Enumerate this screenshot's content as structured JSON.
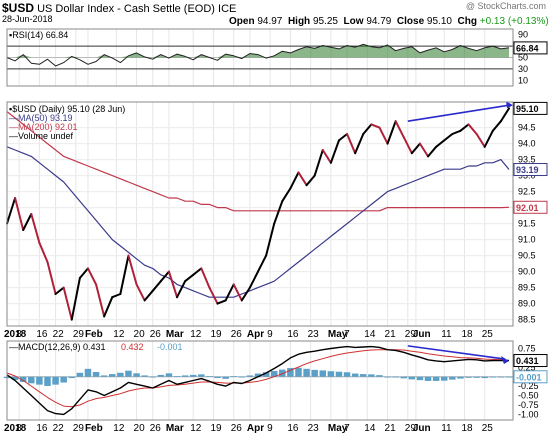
{
  "header": {
    "symbol": "$USD",
    "name": "US Dollar Index - Cash Settle (EOD)",
    "exchange": "ICE",
    "date": "28-Jun-2018",
    "watermark": "@ StockCharts.com",
    "open_label": "Open",
    "open": "94.97",
    "high_label": "High",
    "high": "95.25",
    "low_label": "Low",
    "low": "94.79",
    "close_label": "Close",
    "close": "95.10",
    "chg_label": "Chg",
    "chg": "+0.13 (+0.13%)"
  },
  "colors": {
    "price": "#000000",
    "price_down": "#b0203a",
    "ma50": "#3a3a8c",
    "ma200": "#c0394b",
    "rsi_fill": "#2a7a2a",
    "hist": "#5aa0c8",
    "signal": "#d03030",
    "trend": "#2a2acc"
  },
  "chart_data": [
    {
      "panel": "rsi",
      "type": "line",
      "legend": "RSI(14) 66.84",
      "ylim": [
        0,
        100
      ],
      "yticks": [
        10,
        30,
        50,
        70,
        90
      ],
      "last_label": "66.84",
      "x": [
        0,
        2,
        4,
        6,
        8,
        10,
        12,
        14,
        16,
        18,
        20,
        22,
        24,
        26,
        28,
        30,
        32,
        34,
        36,
        38,
        40,
        42,
        44,
        46,
        48,
        50,
        52,
        54,
        56,
        58,
        60,
        62,
        64,
        66,
        68,
        70,
        72,
        74,
        76,
        78,
        80,
        82,
        84,
        86,
        88,
        90,
        92,
        94,
        96,
        98,
        100,
        102,
        104,
        106,
        108,
        110,
        112,
        114,
        116,
        118,
        120,
        122,
        124
      ],
      "values": [
        50,
        44,
        55,
        40,
        38,
        47,
        35,
        41,
        52,
        46,
        38,
        43,
        55,
        49,
        41,
        53,
        58,
        51,
        47,
        55,
        49,
        56,
        52,
        46,
        55,
        50,
        45,
        56,
        53,
        48,
        57,
        55,
        49,
        53,
        61,
        58,
        64,
        69,
        66,
        71,
        68,
        65,
        71,
        68,
        73,
        69,
        67,
        72,
        62,
        66,
        69,
        58,
        63,
        67,
        60,
        64,
        71,
        66,
        62,
        67,
        70,
        65,
        67
      ]
    },
    {
      "panel": "price",
      "type": "line",
      "legend": [
        {
          "name": "$USD (Daily) 95.10 (28 Jun)",
          "color": "price"
        },
        {
          "name": "MA(50) 93.19",
          "color": "ma50"
        },
        {
          "name": "MA(200) 92.01",
          "color": "ma200"
        },
        {
          "name": "Volume undef",
          "color": "price"
        }
      ],
      "ylim": [
        88.3,
        95.3
      ],
      "yticks": [
        "88.5",
        "89.0",
        "89.5",
        "90.0",
        "90.5",
        "91.0",
        "91.5",
        "92.0",
        "92.5",
        "93.0",
        "93.5",
        "94.0",
        "94.5"
      ],
      "last_labels": [
        "95.10",
        "93.19",
        "92.01"
      ],
      "x": [
        0,
        2,
        4,
        6,
        8,
        10,
        12,
        14,
        16,
        18,
        20,
        22,
        24,
        26,
        28,
        30,
        32,
        34,
        36,
        38,
        40,
        42,
        44,
        46,
        48,
        50,
        52,
        54,
        56,
        58,
        60,
        62,
        64,
        66,
        68,
        70,
        72,
        74,
        76,
        78,
        80,
        82,
        84,
        86,
        88,
        90,
        92,
        94,
        96,
        98,
        100,
        102,
        104,
        106,
        108,
        110,
        112,
        114,
        116,
        118,
        120,
        122,
        124
      ],
      "close": [
        91.5,
        92.3,
        91.3,
        91.8,
        90.9,
        90.3,
        89.3,
        89.5,
        88.5,
        89.8,
        90.1,
        89.6,
        88.6,
        89.2,
        89.3,
        90.5,
        89.6,
        89.1,
        89.4,
        89.7,
        90.0,
        89.2,
        89.7,
        89.9,
        90.1,
        89.5,
        89.0,
        89.1,
        89.6,
        89.1,
        89.5,
        90.0,
        90.5,
        91.5,
        92.2,
        92.6,
        93.1,
        92.7,
        93.0,
        93.8,
        93.4,
        94.1,
        94.3,
        93.7,
        94.3,
        94.6,
        94.5,
        94.0,
        94.7,
        94.2,
        93.7,
        94.0,
        93.6,
        93.9,
        94.1,
        94.3,
        94.4,
        94.6,
        94.3,
        93.9,
        94.4,
        94.7,
        95.1
      ],
      "ma50": [
        93.9,
        93.8,
        93.7,
        93.6,
        93.4,
        93.2,
        93.0,
        92.8,
        92.5,
        92.2,
        91.9,
        91.6,
        91.3,
        91.0,
        90.8,
        90.6,
        90.4,
        90.2,
        90.1,
        89.9,
        89.8,
        89.6,
        89.5,
        89.4,
        89.3,
        89.2,
        89.2,
        89.2,
        89.2,
        89.3,
        89.4,
        89.5,
        89.6,
        89.7,
        89.9,
        90.1,
        90.3,
        90.5,
        90.7,
        90.9,
        91.1,
        91.3,
        91.5,
        91.7,
        91.9,
        92.1,
        92.3,
        92.5,
        92.6,
        92.7,
        92.8,
        92.9,
        93.0,
        93.1,
        93.2,
        93.2,
        93.2,
        93.3,
        93.3,
        93.4,
        93.4,
        93.5,
        93.19
      ],
      "ma200": [
        95.0,
        94.8,
        94.6,
        94.4,
        94.2,
        94.0,
        93.8,
        93.6,
        93.5,
        93.4,
        93.3,
        93.2,
        93.1,
        93.0,
        92.9,
        92.8,
        92.7,
        92.6,
        92.5,
        92.4,
        92.3,
        92.3,
        92.2,
        92.2,
        92.1,
        92.1,
        92.0,
        92.0,
        91.9,
        91.9,
        91.9,
        91.9,
        91.9,
        91.9,
        91.9,
        91.9,
        91.9,
        91.9,
        91.9,
        91.9,
        91.9,
        91.9,
        91.9,
        91.9,
        91.9,
        91.9,
        91.9,
        92.0,
        92.0,
        92.0,
        92.0,
        92.0,
        92.0,
        92.0,
        92.0,
        92.0,
        92.0,
        92.0,
        92.0,
        92.0,
        92.0,
        92.0,
        92.01
      ]
    },
    {
      "panel": "macd",
      "type": "line",
      "legend": [
        {
          "name": "MACD(12,26,9) 0.431",
          "color": "price"
        },
        {
          "name": "0.432",
          "color": "signal"
        },
        {
          "name": "-0.001",
          "color": "hist"
        }
      ],
      "ylim": [
        -1.15,
        0.95
      ],
      "yticks": [
        "0.75",
        "0.50",
        "0.25",
        "0.00",
        "-0.25",
        "-0.50",
        "-0.75",
        "-1.00"
      ],
      "last_labels": [
        "0.431",
        "-0.001"
      ],
      "x": [
        0,
        2,
        4,
        6,
        8,
        10,
        12,
        14,
        16,
        18,
        20,
        22,
        24,
        26,
        28,
        30,
        32,
        34,
        36,
        38,
        40,
        42,
        44,
        46,
        48,
        50,
        52,
        54,
        56,
        58,
        60,
        62,
        64,
        66,
        68,
        70,
        72,
        74,
        76,
        78,
        80,
        82,
        84,
        86,
        88,
        90,
        92,
        94,
        96,
        98,
        100,
        102,
        104,
        106,
        108,
        110,
        112,
        114,
        116,
        118,
        120,
        122,
        124
      ],
      "macd": [
        0.05,
        -0.1,
        -0.3,
        -0.5,
        -0.7,
        -0.9,
        -0.98,
        -1.0,
        -0.85,
        -0.6,
        -0.35,
        -0.4,
        -0.5,
        -0.4,
        -0.3,
        -0.15,
        -0.2,
        -0.25,
        -0.3,
        -0.2,
        -0.1,
        -0.2,
        -0.15,
        -0.1,
        -0.05,
        -0.12,
        -0.2,
        -0.25,
        -0.15,
        -0.18,
        -0.1,
        0.0,
        0.1,
        0.22,
        0.35,
        0.5,
        0.6,
        0.65,
        0.68,
        0.72,
        0.75,
        0.78,
        0.8,
        0.78,
        0.79,
        0.8,
        0.78,
        0.72,
        0.7,
        0.65,
        0.58,
        0.52,
        0.45,
        0.42,
        0.4,
        0.42,
        0.44,
        0.46,
        0.45,
        0.42,
        0.43,
        0.43,
        0.431
      ],
      "signal": [
        0.1,
        0.02,
        -0.1,
        -0.25,
        -0.4,
        -0.55,
        -0.68,
        -0.78,
        -0.8,
        -0.75,
        -0.65,
        -0.58,
        -0.55,
        -0.5,
        -0.45,
        -0.38,
        -0.33,
        -0.3,
        -0.3,
        -0.27,
        -0.23,
        -0.22,
        -0.2,
        -0.17,
        -0.14,
        -0.14,
        -0.15,
        -0.17,
        -0.17,
        -0.17,
        -0.15,
        -0.12,
        -0.07,
        0.0,
        0.08,
        0.17,
        0.26,
        0.35,
        0.42,
        0.48,
        0.54,
        0.59,
        0.63,
        0.66,
        0.69,
        0.71,
        0.72,
        0.72,
        0.72,
        0.71,
        0.68,
        0.65,
        0.61,
        0.58,
        0.55,
        0.53,
        0.51,
        0.5,
        0.49,
        0.47,
        0.46,
        0.45,
        0.432
      ]
    }
  ],
  "xaxis": {
    "labels": [
      {
        "t": "2018",
        "x": 0,
        "bold": true
      },
      {
        "t": "8",
        "x": 3
      },
      {
        "t": "16",
        "x": 8
      },
      {
        "t": "22",
        "x": 12
      },
      {
        "t": "29",
        "x": 17
      },
      {
        "t": "Feb",
        "x": 20,
        "bold": true
      },
      {
        "t": "12",
        "x": 27
      },
      {
        "t": "20",
        "x": 32
      },
      {
        "t": "26",
        "x": 36
      },
      {
        "t": "Mar",
        "x": 40,
        "bold": true
      },
      {
        "t": "12",
        "x": 46
      },
      {
        "t": "19",
        "x": 51
      },
      {
        "t": "26",
        "x": 56
      },
      {
        "t": "Apr",
        "x": 60,
        "bold": true
      },
      {
        "t": "9",
        "x": 65
      },
      {
        "t": "16",
        "x": 70
      },
      {
        "t": "23",
        "x": 75
      },
      {
        "t": "May",
        "x": 80,
        "bold": true
      },
      {
        "t": "7",
        "x": 84
      },
      {
        "t": "14",
        "x": 89
      },
      {
        "t": "21",
        "x": 94
      },
      {
        "t": "29",
        "x": 99
      },
      {
        "t": "Jun",
        "x": 101,
        "bold": true
      },
      {
        "t": "11",
        "x": 108
      },
      {
        "t": "18",
        "x": 113
      },
      {
        "t": "25",
        "x": 118
      }
    ]
  }
}
